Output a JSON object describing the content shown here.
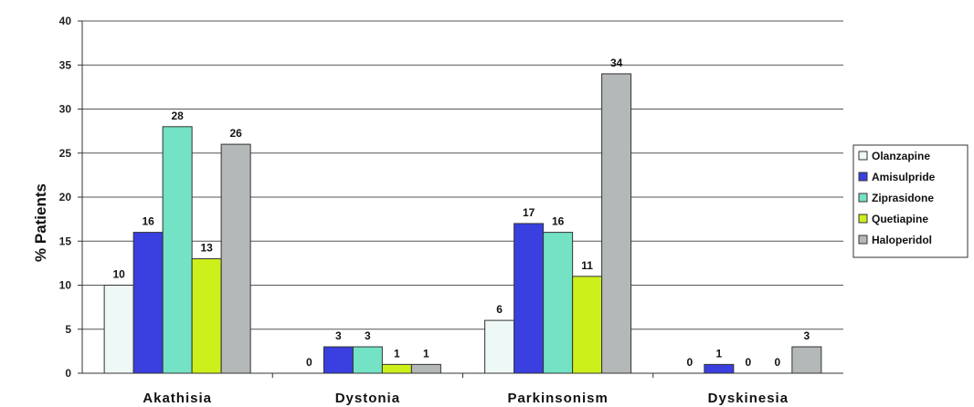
{
  "chart_data": {
    "type": "bar",
    "title": "",
    "xlabel": "",
    "ylabel": "% Patients",
    "ylim": [
      0,
      40
    ],
    "yticks": [
      0,
      5,
      10,
      15,
      20,
      25,
      30,
      35,
      40
    ],
    "grid": true,
    "legend_position": "right",
    "categories": [
      "Akathisia",
      "Dystonia",
      "Parkinsonism",
      "Dyskinesia"
    ],
    "series": [
      {
        "name": "Olanzapine",
        "color": "#eef8f6",
        "values": [
          10,
          0,
          6,
          0
        ]
      },
      {
        "name": "Amisulpride",
        "color": "#3a3fe0",
        "values": [
          16,
          3,
          17,
          1
        ]
      },
      {
        "name": "Ziprasidone",
        "color": "#74e2c4",
        "values": [
          28,
          3,
          16,
          0
        ]
      },
      {
        "name": "Quetiapine",
        "color": "#ccf01a",
        "values": [
          13,
          1,
          11,
          0
        ]
      },
      {
        "name": "Haloperidol",
        "color": "#b4b8b8",
        "values": [
          26,
          1,
          34,
          3
        ]
      }
    ]
  }
}
